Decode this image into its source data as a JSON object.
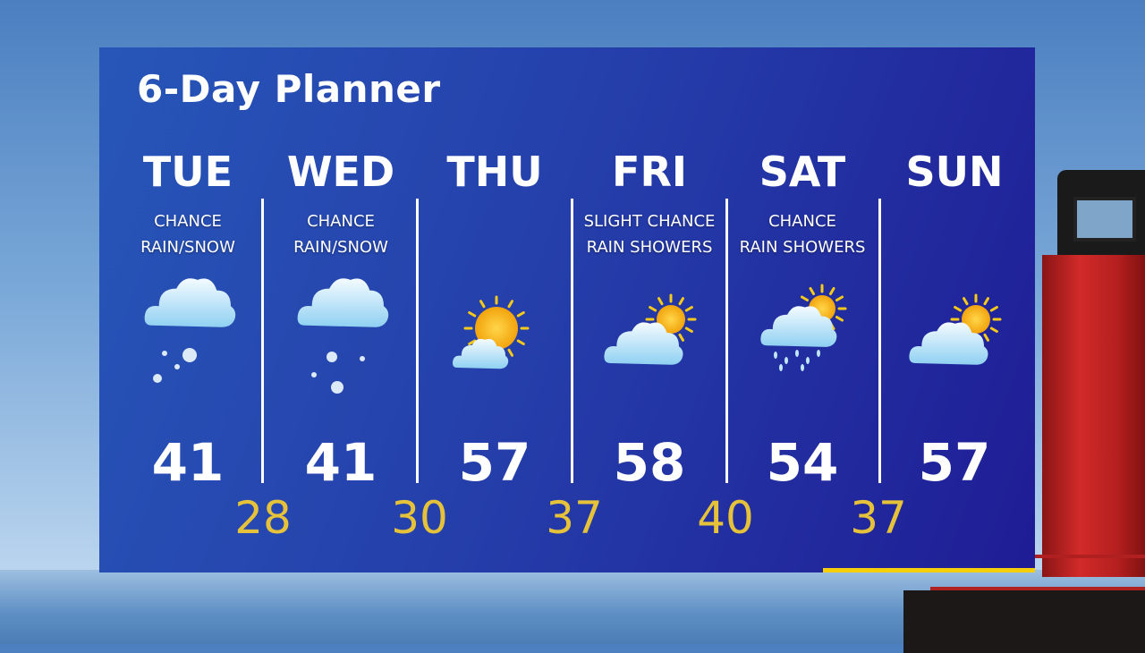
{
  "title": "6-Day Planner",
  "days": [
    {
      "name": "TUE",
      "line1": "CHANCE",
      "line2": "RAIN/SNOW",
      "high": "41",
      "icon": "cloud-rain-snow-icon"
    },
    {
      "name": "WED",
      "line1": "CHANCE",
      "line2": "RAIN/SNOW",
      "high": "41",
      "icon": "cloud-snow-icon"
    },
    {
      "name": "THU",
      "line1": "",
      "line2": "",
      "high": "57",
      "icon": "sun-cloud-icon"
    },
    {
      "name": "FRI",
      "line1": "SLIGHT CHANCE",
      "line2": "RAIN SHOWERS",
      "high": "58",
      "icon": "partly-cloudy-icon"
    },
    {
      "name": "SAT",
      "line1": "CHANCE",
      "line2": "RAIN SHOWERS",
      "high": "54",
      "icon": "sun-cloud-rain-icon"
    },
    {
      "name": "SUN",
      "line1": "",
      "line2": "",
      "high": "57",
      "icon": "partly-cloudy-icon"
    }
  ],
  "lows": [
    "28",
    "30",
    "37",
    "40",
    "37"
  ],
  "colors": {
    "low": "#e6c23a",
    "accent_bar": "#f5cf0a",
    "panel": "#2540ab"
  }
}
